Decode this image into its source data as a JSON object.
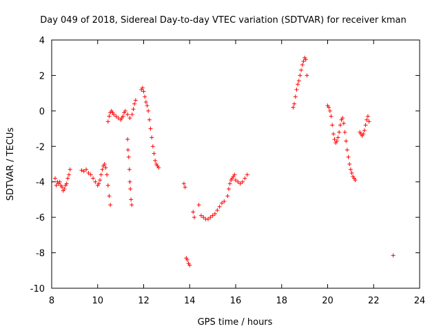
{
  "chart_data": {
    "type": "scatter",
    "title": "Day 049 of 2018, Sidereal Day-to-day VTEC variation (SDTVAR) for receiver kman",
    "xlabel": "GPS time / hours",
    "ylabel": "SDTVAR / TECUs",
    "xlim": [
      8,
      24
    ],
    "ylim": [
      -10,
      4
    ],
    "x_ticks": [
      8,
      10,
      12,
      14,
      16,
      18,
      20,
      22,
      24
    ],
    "y_ticks": [
      -10,
      -8,
      -6,
      -4,
      -2,
      0,
      2,
      4
    ],
    "x_tick_labels": [
      "8",
      "10",
      "12",
      "14",
      "16",
      "18",
      "20",
      "22",
      "24"
    ],
    "y_tick_labels": [
      "-10",
      "-8",
      "-6",
      "-4",
      "-2",
      "0",
      "2",
      "4"
    ],
    "grid": false,
    "marker": "plus",
    "color": "#ff0000",
    "series": [
      {
        "name": "SDTVAR",
        "points": [
          [
            8.15,
            -3.8
          ],
          [
            8.2,
            -4.2
          ],
          [
            8.25,
            -4.0
          ],
          [
            8.3,
            -4.1
          ],
          [
            8.35,
            -4.0
          ],
          [
            8.4,
            -4.2
          ],
          [
            8.45,
            -4.3
          ],
          [
            8.5,
            -4.5
          ],
          [
            8.55,
            -4.4
          ],
          [
            8.6,
            -4.2
          ],
          [
            8.65,
            -4.1
          ],
          [
            8.7,
            -3.8
          ],
          [
            8.75,
            -3.6
          ],
          [
            8.8,
            -3.3
          ],
          [
            9.3,
            -3.35
          ],
          [
            9.4,
            -3.4
          ],
          [
            9.5,
            -3.3
          ],
          [
            9.6,
            -3.5
          ],
          [
            9.7,
            -3.6
          ],
          [
            9.8,
            -3.8
          ],
          [
            9.9,
            -4.0
          ],
          [
            10.0,
            -4.2
          ],
          [
            10.05,
            -4.1
          ],
          [
            10.1,
            -3.9
          ],
          [
            10.15,
            -3.6
          ],
          [
            10.2,
            -3.3
          ],
          [
            10.25,
            -3.1
          ],
          [
            10.3,
            -3.0
          ],
          [
            10.35,
            -3.2
          ],
          [
            10.4,
            -3.6
          ],
          [
            10.45,
            -4.2
          ],
          [
            10.5,
            -4.8
          ],
          [
            10.55,
            -5.3
          ],
          [
            10.45,
            -0.6
          ],
          [
            10.5,
            -0.3
          ],
          [
            10.55,
            -0.1
          ],
          [
            10.6,
            0.0
          ],
          [
            10.65,
            -0.1
          ],
          [
            10.7,
            -0.2
          ],
          [
            10.8,
            -0.3
          ],
          [
            10.9,
            -0.4
          ],
          [
            11.0,
            -0.5
          ],
          [
            11.05,
            -0.4
          ],
          [
            11.1,
            -0.3
          ],
          [
            11.15,
            -0.1
          ],
          [
            11.2,
            0.0
          ],
          [
            11.3,
            -0.2
          ],
          [
            11.4,
            -0.4
          ],
          [
            11.5,
            -0.2
          ],
          [
            11.55,
            0.1
          ],
          [
            11.6,
            0.4
          ],
          [
            11.65,
            0.6
          ],
          [
            11.3,
            -1.6
          ],
          [
            11.32,
            -2.2
          ],
          [
            11.35,
            -2.6
          ],
          [
            11.38,
            -3.3
          ],
          [
            11.4,
            -4.0
          ],
          [
            11.42,
            -4.4
          ],
          [
            11.45,
            -5.0
          ],
          [
            11.48,
            -5.3
          ],
          [
            11.9,
            1.2
          ],
          [
            11.95,
            1.3
          ],
          [
            12.0,
            1.1
          ],
          [
            12.05,
            0.8
          ],
          [
            12.1,
            0.5
          ],
          [
            12.15,
            0.3
          ],
          [
            12.2,
            0.0
          ],
          [
            12.25,
            -0.5
          ],
          [
            12.3,
            -1.0
          ],
          [
            12.35,
            -1.5
          ],
          [
            12.4,
            -2.0
          ],
          [
            12.45,
            -2.4
          ],
          [
            12.5,
            -2.8
          ],
          [
            12.55,
            -3.0
          ],
          [
            12.6,
            -3.1
          ],
          [
            12.65,
            -3.2
          ],
          [
            13.75,
            -4.1
          ],
          [
            13.8,
            -4.3
          ],
          [
            13.85,
            -8.3
          ],
          [
            13.9,
            -8.4
          ],
          [
            13.95,
            -8.6
          ],
          [
            14.0,
            -8.7
          ],
          [
            14.15,
            -5.7
          ],
          [
            14.2,
            -6.0
          ],
          [
            14.4,
            -5.3
          ],
          [
            14.5,
            -5.9
          ],
          [
            14.6,
            -6.0
          ],
          [
            14.7,
            -6.1
          ],
          [
            14.8,
            -6.1
          ],
          [
            14.9,
            -6.0
          ],
          [
            15.0,
            -5.9
          ],
          [
            15.1,
            -5.8
          ],
          [
            15.2,
            -5.6
          ],
          [
            15.3,
            -5.4
          ],
          [
            15.4,
            -5.2
          ],
          [
            15.5,
            -5.1
          ],
          [
            15.65,
            -4.8
          ],
          [
            15.7,
            -4.4
          ],
          [
            15.75,
            -4.1
          ],
          [
            15.8,
            -3.9
          ],
          [
            15.85,
            -3.8
          ],
          [
            15.9,
            -3.7
          ],
          [
            15.95,
            -3.6
          ],
          [
            16.0,
            -3.9
          ],
          [
            16.1,
            -4.0
          ],
          [
            16.2,
            -4.1
          ],
          [
            16.3,
            -4.0
          ],
          [
            16.4,
            -3.8
          ],
          [
            16.5,
            -3.6
          ],
          [
            18.5,
            0.2
          ],
          [
            18.55,
            0.4
          ],
          [
            18.6,
            0.8
          ],
          [
            18.65,
            1.2
          ],
          [
            18.7,
            1.5
          ],
          [
            18.75,
            1.7
          ],
          [
            18.8,
            2.0
          ],
          [
            18.85,
            2.3
          ],
          [
            18.9,
            2.6
          ],
          [
            18.95,
            2.8
          ],
          [
            19.0,
            3.0
          ],
          [
            19.05,
            2.9
          ],
          [
            19.1,
            2.0
          ],
          [
            20.0,
            0.3
          ],
          [
            20.05,
            0.2
          ],
          [
            20.1,
            0.0
          ],
          [
            20.15,
            -0.3
          ],
          [
            20.2,
            -0.8
          ],
          [
            20.25,
            -1.3
          ],
          [
            20.3,
            -1.6
          ],
          [
            20.35,
            -1.8
          ],
          [
            20.4,
            -1.7
          ],
          [
            20.45,
            -1.5
          ],
          [
            20.5,
            -1.2
          ],
          [
            20.55,
            -0.8
          ],
          [
            20.6,
            -0.5
          ],
          [
            20.65,
            -0.4
          ],
          [
            20.7,
            -0.7
          ],
          [
            20.75,
            -1.2
          ],
          [
            20.8,
            -1.7
          ],
          [
            20.85,
            -2.2
          ],
          [
            20.9,
            -2.6
          ],
          [
            20.95,
            -3.0
          ],
          [
            21.0,
            -3.3
          ],
          [
            21.05,
            -3.5
          ],
          [
            21.1,
            -3.7
          ],
          [
            21.15,
            -3.8
          ],
          [
            21.2,
            -3.9
          ],
          [
            21.4,
            -1.2
          ],
          [
            21.45,
            -1.3
          ],
          [
            21.5,
            -1.4
          ],
          [
            21.55,
            -1.3
          ],
          [
            21.6,
            -1.1
          ],
          [
            21.65,
            -0.8
          ],
          [
            21.7,
            -0.5
          ],
          [
            21.75,
            -0.3
          ],
          [
            21.8,
            -0.6
          ],
          [
            22.85,
            -8.15
          ]
        ]
      }
    ]
  }
}
